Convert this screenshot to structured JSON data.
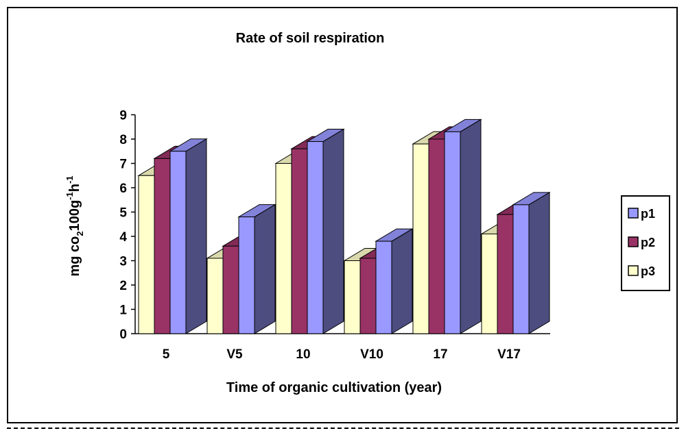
{
  "chart_data": {
    "type": "bar",
    "title": "Rate of soil respiration",
    "xlabel": "Time of organic cultivation (year)",
    "ylabel_parts": [
      "mg co",
      "2",
      "100g",
      "-1",
      "h",
      "-1"
    ],
    "categories": [
      "5",
      "V5",
      "10",
      "V10",
      "17",
      "V17"
    ],
    "y_ticks": [
      "0",
      "1",
      "2",
      "3",
      "4",
      "5",
      "6",
      "7",
      "8",
      "9"
    ],
    "ylim": [
      0,
      9
    ],
    "three_d": true,
    "grid": false,
    "legend_position": "right",
    "legend_order": [
      "p1",
      "p2",
      "p3"
    ],
    "series": [
      {
        "name": "p3",
        "values": [
          6.5,
          3.1,
          7.0,
          3.0,
          7.8,
          4.1
        ],
        "color": "#ffffcc"
      },
      {
        "name": "p2",
        "values": [
          7.2,
          3.6,
          7.6,
          3.1,
          8.0,
          4.9
        ],
        "color": "#993366"
      },
      {
        "name": "p1",
        "values": [
          7.5,
          4.8,
          7.9,
          3.8,
          8.3,
          5.3
        ],
        "color": "#9999ff"
      }
    ]
  }
}
